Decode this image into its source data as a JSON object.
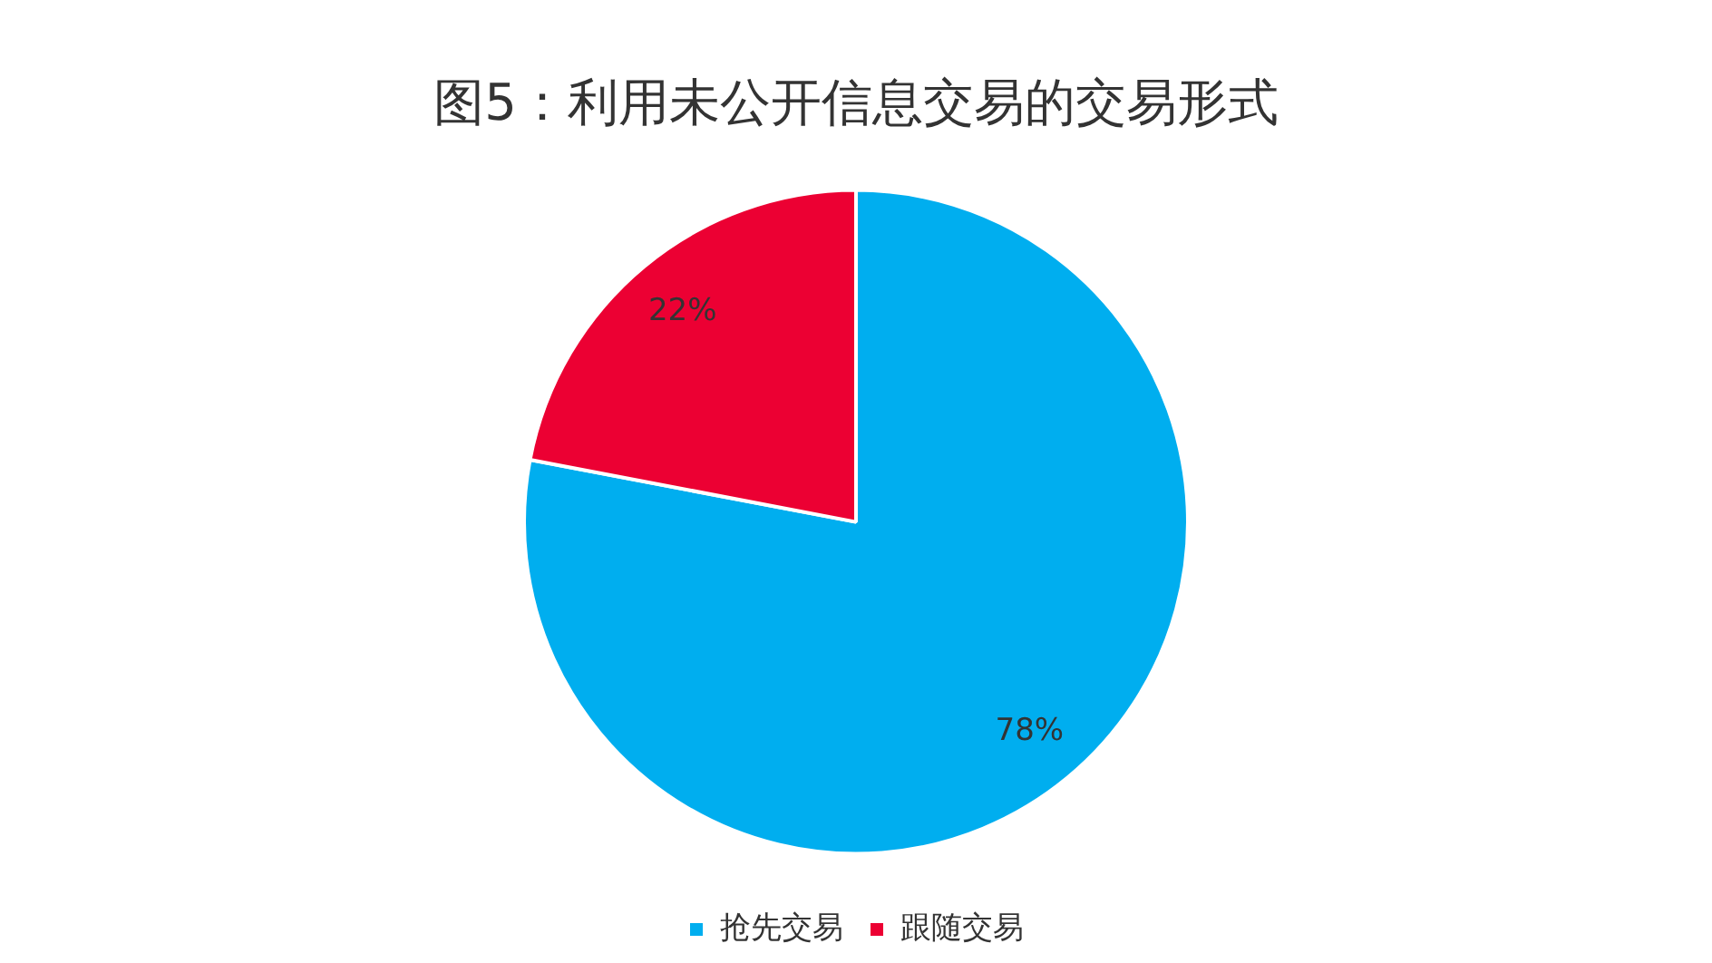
{
  "chart_data": {
    "type": "pie",
    "title": "图5：利用未公开信息交易的交易形式",
    "categories": [
      "抢先交易",
      "跟随交易"
    ],
    "values": [
      78,
      22
    ],
    "colors": [
      "#00aeef",
      "#ec0033"
    ],
    "value_labels": [
      "78%",
      "22%"
    ],
    "legend": "bottom"
  }
}
